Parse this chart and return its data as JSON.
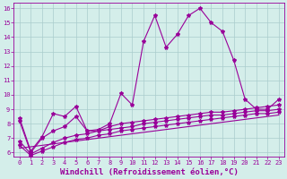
{
  "bg_color": "#d4eeea",
  "line_color": "#990099",
  "grid_color": "#aacccc",
  "xlabel": "Windchill (Refroidissement éolien,°C)",
  "xlabel_color": "#990099",
  "xlim": [
    -0.5,
    23.5
  ],
  "ylim": [
    5.7,
    16.4
  ],
  "yticks": [
    6,
    7,
    8,
    9,
    10,
    11,
    12,
    13,
    14,
    15,
    16
  ],
  "xticks": [
    0,
    1,
    2,
    3,
    4,
    5,
    6,
    7,
    8,
    9,
    10,
    11,
    12,
    13,
    14,
    15,
    16,
    17,
    18,
    19,
    20,
    21,
    22,
    23
  ],
  "series1_x": [
    0,
    1,
    2,
    3,
    4,
    5,
    6,
    7,
    8,
    9,
    10,
    11,
    12,
    13,
    14,
    15,
    16,
    17,
    18,
    19,
    20,
    21,
    22,
    23
  ],
  "series1_y": [
    8.4,
    6.1,
    7.1,
    8.7,
    8.5,
    9.2,
    7.5,
    7.6,
    8.0,
    10.1,
    9.3,
    13.7,
    15.5,
    13.3,
    14.2,
    15.5,
    16.0,
    15.0,
    14.4,
    12.4,
    9.7,
    9.0,
    9.0,
    9.7
  ],
  "series2_x": [
    0,
    1,
    2,
    3,
    4,
    5,
    6,
    7,
    8,
    9,
    10,
    11,
    12,
    13,
    14,
    15,
    16,
    17,
    18,
    19,
    20,
    21,
    22,
    23
  ],
  "series2_y": [
    8.2,
    6.0,
    7.0,
    7.5,
    7.8,
    8.5,
    7.5,
    7.5,
    7.8,
    8.0,
    8.1,
    8.2,
    8.3,
    8.4,
    8.5,
    8.6,
    8.7,
    8.8,
    8.8,
    8.9,
    9.0,
    9.1,
    9.2,
    9.3
  ],
  "series3_x": [
    0,
    1,
    2,
    3,
    4,
    5,
    6,
    7,
    8,
    9,
    10,
    11,
    12,
    13,
    14,
    15,
    16,
    17,
    18,
    19,
    20,
    21,
    22,
    23
  ],
  "series3_y": [
    6.8,
    5.9,
    6.3,
    6.7,
    7.0,
    7.2,
    7.3,
    7.5,
    7.6,
    7.7,
    7.8,
    8.0,
    8.1,
    8.2,
    8.3,
    8.4,
    8.5,
    8.6,
    8.6,
    8.7,
    8.8,
    8.9,
    8.9,
    9.0
  ],
  "series4_x": [
    0,
    1,
    2,
    3,
    4,
    5,
    6,
    7,
    8,
    9,
    10,
    11,
    12,
    13,
    14,
    15,
    16,
    17,
    18,
    19,
    20,
    21,
    22,
    23
  ],
  "series4_y": [
    6.5,
    5.8,
    6.1,
    6.4,
    6.7,
    6.9,
    7.0,
    7.2,
    7.3,
    7.5,
    7.6,
    7.7,
    7.8,
    7.9,
    8.0,
    8.1,
    8.2,
    8.3,
    8.4,
    8.5,
    8.6,
    8.7,
    8.7,
    8.8
  ],
  "series5_x": [
    0,
    23
  ],
  "series5_y": [
    6.3,
    8.6
  ],
  "marker": "*",
  "markersize": 3,
  "linewidth": 0.8,
  "tick_fontsize": 5,
  "xlabel_fontsize": 6.5
}
